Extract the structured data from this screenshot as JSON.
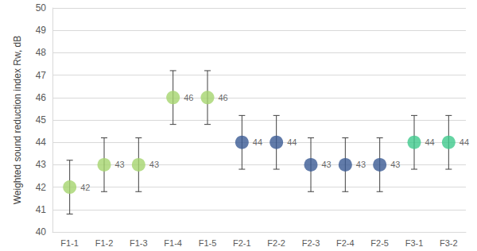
{
  "chart_data": {
    "type": "scatter",
    "y_label": "Weighted sound reduction index Rw, dB",
    "categories": [
      "F1-1",
      "F1-2",
      "F1-3",
      "F1-4",
      "F1-5",
      "F2-1",
      "F2-2",
      "F2-3",
      "F2-4",
      "F2-5",
      "F3-1",
      "F3-2"
    ],
    "values": [
      42,
      43,
      43,
      46,
      46,
      44,
      44,
      43,
      43,
      43,
      44,
      44
    ],
    "error": [
      1.2,
      1.2,
      1.2,
      1.2,
      1.2,
      1.2,
      1.2,
      1.2,
      1.2,
      1.2,
      1.2,
      1.2
    ],
    "colors": [
      "#a5d46e",
      "#a5d46e",
      "#a5d46e",
      "#a5d46e",
      "#a5d46e",
      "#3a5a94",
      "#3a5a94",
      "#3a5a94",
      "#3a5a94",
      "#3a5a94",
      "#3fc98c",
      "#3fc98c"
    ],
    "ylim": [
      40,
      50
    ],
    "yticks": [
      40,
      41,
      42,
      43,
      44,
      45,
      46,
      47,
      48,
      49,
      50
    ],
    "grid": true,
    "data_labels": true,
    "marker": "circle"
  }
}
